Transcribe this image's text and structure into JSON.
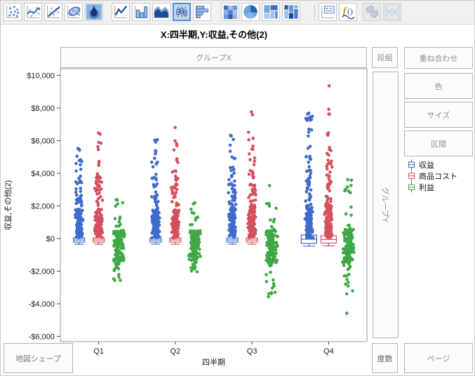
{
  "title": "X:四半期,Y:収益,その他(2)",
  "toolbar": {
    "icons": [
      {
        "name": "points-chart-icon",
        "state": "normal"
      },
      {
        "name": "smoother-chart-icon",
        "state": "normal"
      },
      {
        "name": "line-of-fit-chart-icon",
        "state": "normal"
      },
      {
        "name": "ellipse-chart-icon",
        "state": "normal"
      },
      {
        "name": "contour-chart-icon",
        "state": "normal"
      },
      {
        "name": "line-chart-icon",
        "state": "normal"
      },
      {
        "name": "bar-chart-icon",
        "state": "normal"
      },
      {
        "name": "area-chart-icon",
        "state": "normal"
      },
      {
        "name": "box-plot-chart-icon",
        "state": "selected"
      },
      {
        "name": "histogram-chart-icon",
        "state": "normal"
      },
      {
        "name": "heatmap-chart-icon",
        "state": "normal"
      },
      {
        "name": "pie-chart-icon",
        "state": "normal"
      },
      {
        "name": "treemap-chart-icon",
        "state": "normal"
      },
      {
        "name": "mosaic-chart-icon",
        "state": "normal"
      },
      {
        "name": "caption-box-icon",
        "state": "normal"
      },
      {
        "name": "formula-icon",
        "state": "normal"
      },
      {
        "name": "map-shapes-icon",
        "state": "disabled"
      },
      {
        "name": "parallel-plot-icon",
        "state": "disabled"
      }
    ]
  },
  "drop_zones": {
    "group_x": "グループX",
    "lattice": "段組",
    "overlay": "重ね合わせ",
    "color": "色",
    "size": "サイズ",
    "interval": "区間",
    "group_y": "グループY",
    "map_shape": "地図シェープ",
    "frequency": "度数",
    "page": "ページ"
  },
  "legend": {
    "items": [
      {
        "label": "収益",
        "color": "#3F6BCB"
      },
      {
        "label": "商品コスト",
        "color": "#D4505E"
      },
      {
        "label": "利益",
        "color": "#3FA845"
      }
    ]
  },
  "chart_data": {
    "type": "scatter",
    "title": "X:四半期,Y:収益,その他(2)",
    "xlabel": "四半期",
    "ylabel": "収益,その他(2)",
    "categories": [
      "Q1",
      "Q2",
      "Q3",
      "Q4"
    ],
    "ylim": [
      -6320,
      10400
    ],
    "grid": false,
    "legend_position": "right",
    "yticks": [
      {
        "value": 10000,
        "label": "$10,000"
      },
      {
        "value": 8000,
        "label": "$8,000"
      },
      {
        "value": 6000,
        "label": "$6,000"
      },
      {
        "value": 4000,
        "label": "$4,000"
      },
      {
        "value": 2000,
        "label": "$2,000"
      },
      {
        "value": 0,
        "label": "$0"
      },
      {
        "value": -2000,
        "label": "-$2,000"
      },
      {
        "value": -4000,
        "label": "-$4,000"
      },
      {
        "value": -6000,
        "label": "-$6,000"
      }
    ],
    "note": "jittered point clusters; value_bands = [low$, high$, n_points] per cluster; box = quartile box plot values in $",
    "series": [
      {
        "name": "収益",
        "color": "#3F6BCB",
        "offset": -28,
        "jitter": 6,
        "clusters": [
          {
            "category": "Q1",
            "value_bands": [
              [
                50,
                1800,
                110
              ],
              [
                1800,
                3600,
                26
              ],
              [
                3600,
                5550,
                13
              ]
            ],
            "box": {
              "q3": 30,
              "med": -90,
              "q1": -220,
              "lo": -350,
              "hw": 8
            }
          },
          {
            "category": "Q2",
            "value_bands": [
              [
                50,
                1800,
                110
              ],
              [
                1800,
                3800,
                27
              ],
              [
                3800,
                6100,
                13
              ]
            ],
            "box": {
              "q3": 30,
              "med": -90,
              "q1": -220,
              "lo": -350,
              "hw": 8
            }
          },
          {
            "category": "Q3",
            "value_bands": [
              [
                50,
                1900,
                112
              ],
              [
                1900,
                4000,
                28
              ],
              [
                4000,
                6450,
                13
              ]
            ],
            "box": {
              "q3": 30,
              "med": -90,
              "q1": -220,
              "lo": -350,
              "hw": 8
            }
          },
          {
            "category": "Q4",
            "value_bands": [
              [
                50,
                2000,
                112
              ],
              [
                2000,
                4500,
                30
              ],
              [
                4500,
                7000,
                12
              ],
              [
                7000,
                7800,
                9
              ]
            ],
            "box": {
              "q3": 215,
              "med": -45,
              "q1": -300,
              "lo": -470,
              "hw": 11
            }
          }
        ]
      },
      {
        "name": "商品コスト",
        "color": "#D4505E",
        "offset": 0,
        "jitter": 6,
        "clusters": [
          {
            "category": "Q1",
            "value_bands": [
              [
                50,
                1800,
                115
              ],
              [
                1800,
                3800,
                28
              ],
              [
                3800,
                6500,
                12
              ]
            ],
            "box": {
              "q3": 30,
              "med": -90,
              "q1": -220,
              "lo": -350,
              "hw": 8
            }
          },
          {
            "category": "Q2",
            "value_bands": [
              [
                50,
                1800,
                115
              ],
              [
                1800,
                3900,
                28
              ],
              [
                3900,
                6300,
                11
              ],
              [
                6800,
                6900,
                1
              ]
            ],
            "box": {
              "q3": 30,
              "med": -90,
              "q1": -220,
              "lo": -350,
              "hw": 8
            }
          },
          {
            "category": "Q3",
            "value_bands": [
              [
                50,
                2000,
                115
              ],
              [
                2000,
                4200,
                28
              ],
              [
                4200,
                6600,
                11
              ],
              [
                7550,
                7780,
                2
              ]
            ],
            "box": {
              "q3": 30,
              "med": -90,
              "q1": -220,
              "lo": -350,
              "hw": 8
            }
          },
          {
            "category": "Q4",
            "value_bands": [
              [
                50,
                2200,
                115
              ],
              [
                2200,
                4800,
                30
              ],
              [
                4800,
                6700,
                10
              ],
              [
                7500,
                8100,
                3
              ],
              [
                9300,
                9400,
                1
              ]
            ],
            "box": {
              "q3": 170,
              "med": -60,
              "q1": -280,
              "lo": -460,
              "hw": 11
            }
          }
        ]
      },
      {
        "name": "利益",
        "color": "#3FA845",
        "offset": 28,
        "jitter": 9,
        "clusters": [
          {
            "category": "Q1",
            "value_bands": [
              [
                -1400,
                500,
                125
              ],
              [
                500,
                2900,
                12
              ],
              [
                -2700,
                -1400,
                15
              ]
            ]
          },
          {
            "category": "Q2",
            "value_bands": [
              [
                -1400,
                500,
                125
              ],
              [
                500,
                2400,
                10
              ],
              [
                -2100,
                -1400,
                12
              ]
            ]
          },
          {
            "category": "Q3",
            "value_bands": [
              [
                -1500,
                500,
                125
              ],
              [
                500,
                2300,
                9
              ],
              [
                -3600,
                -1500,
                15
              ],
              [
                3150,
                3250,
                1
              ]
            ]
          },
          {
            "category": "Q4",
            "value_bands": [
              [
                -1600,
                600,
                128
              ],
              [
                600,
                2000,
                6
              ],
              [
                2800,
                3800,
                8
              ],
              [
                -3500,
                -1600,
                13
              ],
              [
                -4600,
                -4500,
                1
              ]
            ]
          }
        ]
      }
    ]
  }
}
